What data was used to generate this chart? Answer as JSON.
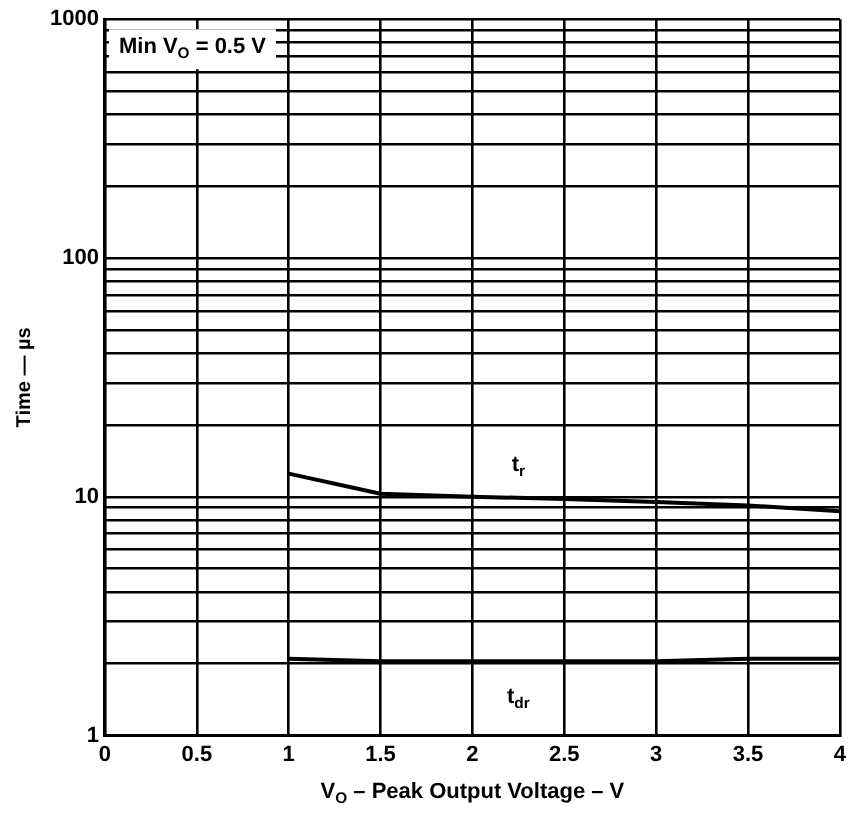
{
  "chart_data": {
    "type": "line",
    "xlabel": "V$_{O}$ – Peak Output Voltage – V",
    "ylabel": "Time — µs",
    "annotations": [
      "Min V$_{O}$ = 0.5 V"
    ],
    "x": [
      1,
      1.5,
      2,
      2.5,
      3,
      3.5,
      4
    ],
    "series": [
      {
        "name": "t$_{r}$",
        "color": "#000000",
        "values": [
          12.5,
          10.3,
          10,
          9.8,
          9.5,
          9.2,
          8.7
        ]
      },
      {
        "name": "t$_{dr}$",
        "color": "#000000",
        "values": [
          2.1,
          2.05,
          2.05,
          2.05,
          2.05,
          2.1,
          2.1
        ]
      }
    ],
    "log": "y",
    "xlim": [
      0,
      4
    ],
    "xticks": [
      0,
      0.5,
      1,
      1.5,
      2,
      2.5,
      3,
      3.5,
      4
    ],
    "ylim": [
      1,
      1000
    ],
    "yticks": [
      1,
      {
        "value": 2,
        "label": null
      },
      {
        "value": 3,
        "label": null
      },
      {
        "value": 4,
        "label": null
      },
      {
        "value": 5,
        "label": null
      },
      {
        "value": 6,
        "label": null
      },
      {
        "value": 7,
        "label": null
      },
      {
        "value": 8,
        "label": null
      },
      {
        "value": 9,
        "label": null
      },
      10,
      {
        "value": 20,
        "label": null
      },
      {
        "value": 30,
        "label": null
      },
      {
        "value": 40,
        "label": null
      },
      {
        "value": 50,
        "label": null
      },
      {
        "value": 60,
        "label": null
      },
      {
        "value": 70,
        "label": null
      },
      {
        "value": 80,
        "label": null
      },
      {
        "value": 90,
        "label": null
      },
      100,
      {
        "value": 200,
        "label": null
      },
      {
        "value": 300,
        "label": null
      },
      {
        "value": 400,
        "label": null
      },
      {
        "value": 500,
        "label": null
      },
      {
        "value": 600,
        "label": null
      },
      {
        "value": 700,
        "label": null
      },
      {
        "value": 800,
        "label": null
      },
      {
        "value": 900,
        "label": null
      },
      1000
    ],
    "grid": true,
    "legend": false,
    "marker": "none",
    "line_style": "solid"
  }
}
